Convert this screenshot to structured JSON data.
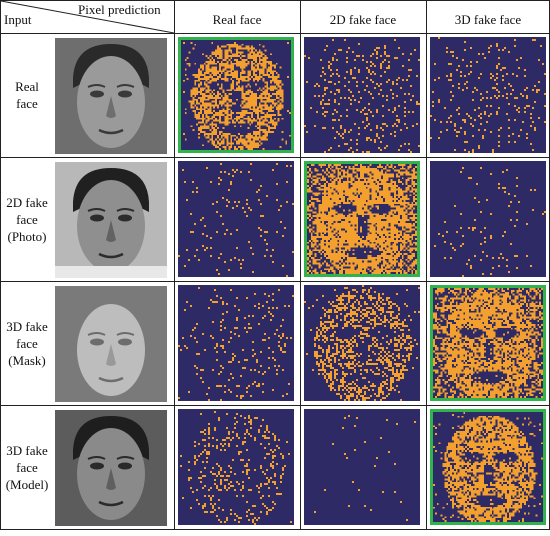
{
  "header": {
    "input_label": "Input",
    "pixel_prediction_label": "Pixel prediction",
    "columns": [
      "Real face",
      "2D fake face",
      "3D fake face"
    ]
  },
  "rows": [
    {
      "label_lines": [
        "Real",
        "face"
      ],
      "input_face": "grayscale-frontal-face",
      "highlighted_column": 0,
      "density": [
        0.5,
        0.08,
        0.06
      ],
      "pattern": [
        "face",
        "sparse",
        "sparse"
      ]
    },
    {
      "label_lines": [
        "2D fake",
        "face",
        "(Photo)"
      ],
      "input_face": "grayscale-photo-face",
      "highlighted_column": 1,
      "density": [
        0.03,
        0.8,
        0.02
      ],
      "pattern": [
        "sparse",
        "full",
        "sparse"
      ]
    },
    {
      "label_lines": [
        "3D fake",
        "face",
        "(Mask)"
      ],
      "input_face": "grayscale-mask-face",
      "highlighted_column": 2,
      "density": [
        0.05,
        0.3,
        0.75
      ],
      "pattern": [
        "sparse",
        "face",
        "full"
      ]
    },
    {
      "label_lines": [
        "3D fake",
        "face",
        "(Model)"
      ],
      "input_face": "grayscale-model-face",
      "highlighted_column": 2,
      "density": [
        0.12,
        0.01,
        0.55
      ],
      "pattern": [
        "face",
        "sparse",
        "face"
      ]
    }
  ],
  "colors": {
    "map_background": "#2e2a66",
    "map_foreground": "#f4a02e",
    "highlight_border": "#2fb34a"
  }
}
